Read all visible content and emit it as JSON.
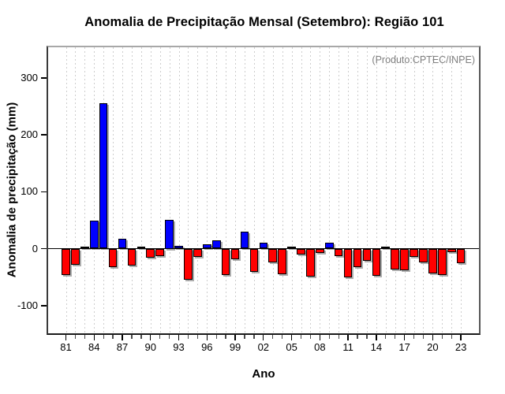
{
  "title": "Anomalia de Precipitação Mensal (Setembro): Região 101",
  "annotation": "(Produto:CPTEC/INPE)",
  "colors": {
    "positive_bar": "#0000ff",
    "negative_bar": "#ff0000",
    "bar_border": "#000000",
    "bar_shadow": "#828282",
    "gridline": "#cdcdcd",
    "annotation_text": "#7f7f7f",
    "background": "#ffffff"
  },
  "chart_data": {
    "type": "bar",
    "title": "Anomalia de Precipitação Mensal (Setembro): Região 101",
    "xlabel": "Ano",
    "ylabel": "Anomalia de precipitação (mm)",
    "annotation": "(Produto:CPTEC/INPE)",
    "x_start_year": 1981,
    "x_end_year": 2023,
    "x_tick_label_every": 3,
    "x_tick_labels": [
      "81",
      "84",
      "87",
      "90",
      "93",
      "96",
      "99",
      "02",
      "05",
      "08",
      "11",
      "14",
      "17",
      "20",
      "23"
    ],
    "y_ticks": [
      -100,
      0,
      100,
      200,
      300
    ],
    "ylim": [
      -151,
      357
    ],
    "grid": "vertical-dotted",
    "legend_position": "none",
    "series": [
      {
        "name": "Anomalia de precipitação (mm)",
        "years": [
          1981,
          1982,
          1983,
          1984,
          1985,
          1986,
          1987,
          1988,
          1989,
          1990,
          1991,
          1992,
          1993,
          1994,
          1995,
          1996,
          1997,
          1998,
          1999,
          2000,
          2001,
          2002,
          2003,
          2004,
          2005,
          2006,
          2007,
          2008,
          2009,
          2010,
          2011,
          2012,
          2013,
          2014,
          2015,
          2016,
          2017,
          2018,
          2019,
          2020,
          2021,
          2022,
          2023
        ],
        "values": [
          -47,
          -28,
          3,
          49,
          255,
          -33,
          17,
          -30,
          3,
          -16,
          -13,
          50,
          5,
          -54,
          -14,
          7,
          15,
          -46,
          -18,
          30,
          -41,
          11,
          -24,
          -45,
          4,
          -10,
          -49,
          -7,
          11,
          -13,
          -50,
          -33,
          -21,
          -48,
          4,
          -36,
          -38,
          -14,
          -24,
          -43,
          -46,
          -6,
          -26
        ]
      }
    ]
  }
}
